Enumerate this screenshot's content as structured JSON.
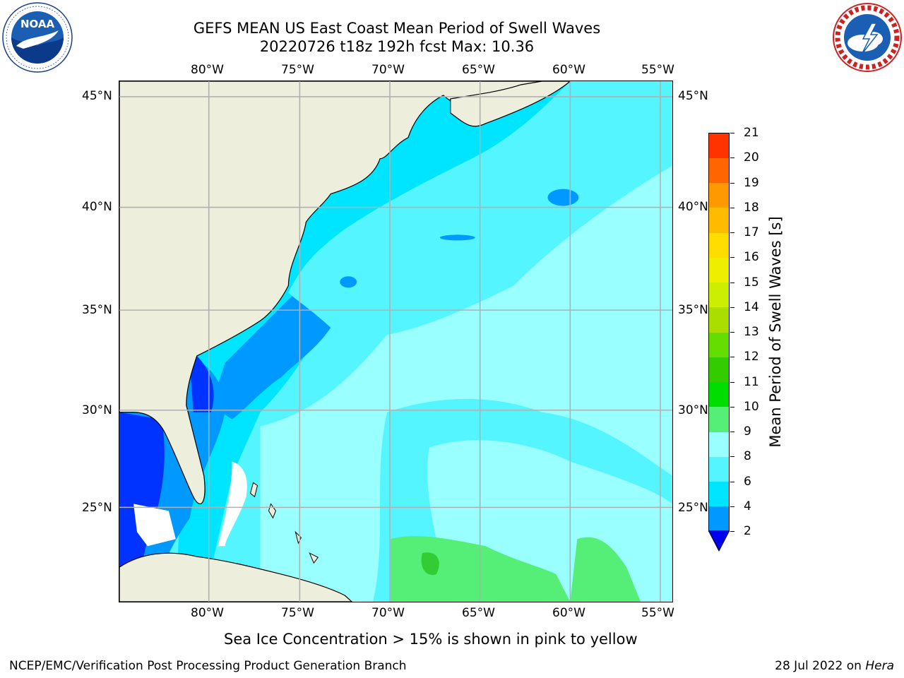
{
  "title": {
    "line1": "GEFS MEAN US East Coast Mean Period of Swell Waves",
    "line2": "20220726 t18z 192h fcst   Max: 10.36"
  },
  "logos": {
    "left": {
      "icon": "noaa-logo",
      "text": "NOAA"
    },
    "right": {
      "icon": "nws-logo",
      "text": "NATIONAL WEATHER SERVICE"
    }
  },
  "map": {
    "type": "filled-contour-map",
    "region": "US East Coast / Western North Atlantic",
    "lon_labels": [
      "80°W",
      "75°W",
      "70°W",
      "65°W",
      "60°W",
      "55°W"
    ],
    "lat_labels": [
      "45°N",
      "40°N",
      "35°N",
      "30°N",
      "25°N"
    ],
    "land_color": "#eeeedc",
    "grid_color": "#b0b0b0",
    "max_value": 10.36
  },
  "colorbar": {
    "label": "Mean Period of Swell Waves [s]",
    "ticks": [
      "2",
      "4",
      "6",
      "8",
      "9",
      "10",
      "11",
      "12",
      "13",
      "14",
      "15",
      "16",
      "17",
      "18",
      "19",
      "20",
      "21"
    ],
    "colors": [
      "#0033ff",
      "#0099ff",
      "#00e5ff",
      "#55f5ff",
      "#99ffff",
      "#55ee77",
      "#00dd00",
      "#33cc00",
      "#66dd00",
      "#aadd00",
      "#ccee00",
      "#eeee00",
      "#ffdd00",
      "#ffbb00",
      "#ff9900",
      "#ff6600",
      "#ff3300",
      "#ff0000"
    ],
    "extend_color": "#0000ee"
  },
  "subtitle": "Sea Ice Concentration > 15% is shown in pink to yellow",
  "footer": {
    "left": "NCEP/EMC/Verification Post Processing Product Generation Branch",
    "right_prefix": "28 Jul 2022 on ",
    "right_machine": "Hera"
  }
}
